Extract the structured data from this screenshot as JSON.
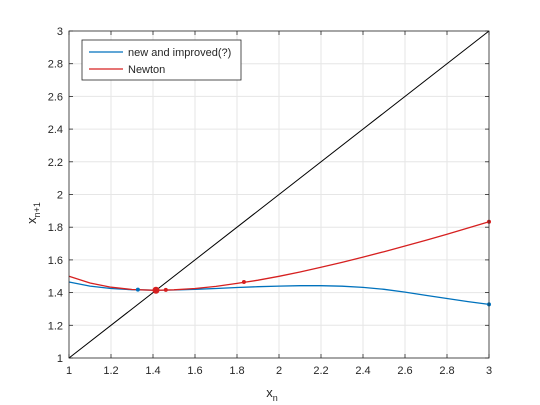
{
  "chart_data": {
    "type": "line",
    "title": "",
    "xlabel": "x",
    "xlabel_sub": "n",
    "ylabel": "x",
    "ylabel_sub": "n+1",
    "xlim": [
      1,
      3
    ],
    "ylim": [
      1,
      3
    ],
    "xticks": [
      1,
      1.2,
      1.4,
      1.6,
      1.8,
      2,
      2.2,
      2.4,
      2.6,
      2.8,
      3
    ],
    "yticks": [
      1,
      1.2,
      1.4,
      1.6,
      1.8,
      2,
      2.2,
      2.4,
      2.6,
      2.8,
      3
    ],
    "xtick_labels": [
      "1",
      "1.2",
      "1.4",
      "1.6",
      "1.8",
      "2",
      "2.2",
      "2.4",
      "2.6",
      "2.8",
      "3"
    ],
    "ytick_labels": [
      "1",
      "1.2",
      "1.4",
      "1.6",
      "1.8",
      "2",
      "2.2",
      "2.4",
      "2.6",
      "2.8",
      "3"
    ],
    "grid": true,
    "legend_position": "top-left",
    "series": [
      {
        "name": "new and improved(?)",
        "color": "#0072BD",
        "x": [
          1.0,
          1.1,
          1.2,
          1.3,
          1.4,
          1.5,
          1.6,
          1.7,
          1.8,
          1.9,
          2.0,
          2.1,
          2.2,
          2.3,
          2.4,
          2.5,
          2.6,
          2.7,
          2.8,
          2.9,
          3.0
        ],
        "y": [
          1.465,
          1.44,
          1.425,
          1.418,
          1.415,
          1.416,
          1.42,
          1.425,
          1.431,
          1.436,
          1.44,
          1.442,
          1.442,
          1.439,
          1.432,
          1.42,
          1.403,
          1.383,
          1.364,
          1.345,
          1.328
        ],
        "markers": [
          [
            1.328,
            1.418
          ],
          [
            3.0,
            1.328
          ]
        ]
      },
      {
        "name": "Newton",
        "color": "#D62020",
        "x": [
          1.0,
          1.1,
          1.2,
          1.3,
          1.414,
          1.5,
          1.6,
          1.7,
          1.8,
          1.9,
          2.0,
          2.1,
          2.2,
          2.3,
          2.4,
          2.5,
          2.6,
          2.7,
          2.8,
          2.9,
          3.0
        ],
        "y": [
          1.5,
          1.459,
          1.433,
          1.419,
          1.414,
          1.417,
          1.425,
          1.438,
          1.456,
          1.476,
          1.5,
          1.526,
          1.555,
          1.585,
          1.617,
          1.65,
          1.685,
          1.72,
          1.757,
          1.795,
          1.833
        ],
        "markers": [
          [
            1.461,
            1.417
          ],
          [
            1.833,
            1.4646
          ],
          [
            3.0,
            1.833
          ]
        ]
      },
      {
        "name": "",
        "color": "#000000",
        "x": [
          1,
          3
        ],
        "y": [
          1,
          3
        ]
      }
    ],
    "fixed_point": [
      1.4142,
      1.4142
    ]
  }
}
